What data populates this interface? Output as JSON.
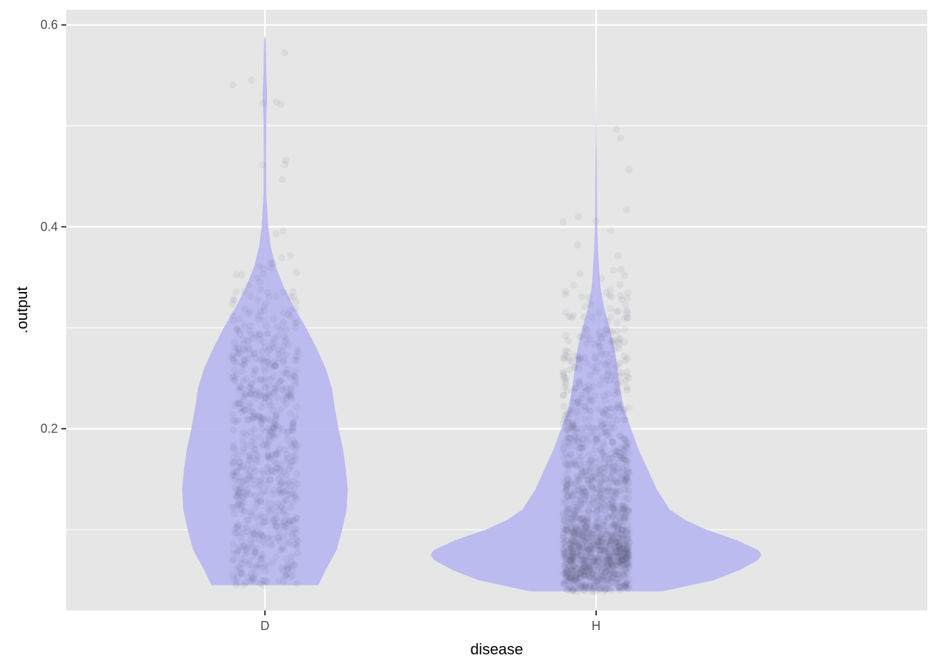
{
  "chart_data": {
    "type": "violin",
    "title": "",
    "xlabel": "disease",
    "ylabel": ".output",
    "categories": [
      "D",
      "H"
    ],
    "ylim": [
      0.02,
      0.615
    ],
    "y_ticks": [
      0.2,
      0.4,
      0.6
    ],
    "y_tick_labels": [
      "0.2",
      "0.4",
      "0.6"
    ],
    "y_minor_ticks": [
      0.1,
      0.3,
      0.5
    ],
    "grid": true,
    "legend": "none",
    "colors": {
      "panel": "#e6e6e6",
      "grid": "#ffffff",
      "violin": "#b3b3f0",
      "points": "#5a5a70"
    },
    "series": [
      {
        "category": "D",
        "y_min": 0.045,
        "y_max": 0.59,
        "max_half_width": 0.225,
        "density_profile": [
          [
            0.045,
            0.145
          ],
          [
            0.06,
            0.165
          ],
          [
            0.08,
            0.195
          ],
          [
            0.1,
            0.21
          ],
          [
            0.12,
            0.222
          ],
          [
            0.14,
            0.225
          ],
          [
            0.16,
            0.22
          ],
          [
            0.18,
            0.212
          ],
          [
            0.2,
            0.2
          ],
          [
            0.22,
            0.19
          ],
          [
            0.24,
            0.182
          ],
          [
            0.26,
            0.165
          ],
          [
            0.28,
            0.14
          ],
          [
            0.3,
            0.112
          ],
          [
            0.32,
            0.08
          ],
          [
            0.34,
            0.052
          ],
          [
            0.36,
            0.03
          ],
          [
            0.38,
            0.016
          ],
          [
            0.4,
            0.009
          ],
          [
            0.43,
            0.004
          ],
          [
            0.47,
            0.003
          ],
          [
            0.51,
            0.004
          ],
          [
            0.53,
            0.006
          ],
          [
            0.55,
            0.004
          ],
          [
            0.57,
            0.003
          ],
          [
            0.585,
            0.002
          ],
          [
            0.59,
            0
          ]
        ],
        "n_points": 700,
        "jitter_half_width": 0.1
      },
      {
        "category": "H",
        "y_min": 0.039,
        "y_max": 0.555,
        "max_half_width": 0.45,
        "density_profile": [
          [
            0.039,
            0.18
          ],
          [
            0.05,
            0.32
          ],
          [
            0.06,
            0.39
          ],
          [
            0.07,
            0.44
          ],
          [
            0.075,
            0.45
          ],
          [
            0.08,
            0.44
          ],
          [
            0.09,
            0.38
          ],
          [
            0.1,
            0.3
          ],
          [
            0.11,
            0.24
          ],
          [
            0.12,
            0.2
          ],
          [
            0.14,
            0.165
          ],
          [
            0.16,
            0.14
          ],
          [
            0.18,
            0.115
          ],
          [
            0.2,
            0.095
          ],
          [
            0.22,
            0.075
          ],
          [
            0.24,
            0.065
          ],
          [
            0.26,
            0.058
          ],
          [
            0.28,
            0.05
          ],
          [
            0.3,
            0.037
          ],
          [
            0.32,
            0.022
          ],
          [
            0.34,
            0.012
          ],
          [
            0.36,
            0.008
          ],
          [
            0.38,
            0.005
          ],
          [
            0.4,
            0.003
          ],
          [
            0.45,
            0.002
          ],
          [
            0.5,
            0.001
          ],
          [
            0.555,
            0
          ]
        ],
        "n_points": 1500,
        "jitter_half_width": 0.1
      }
    ]
  }
}
